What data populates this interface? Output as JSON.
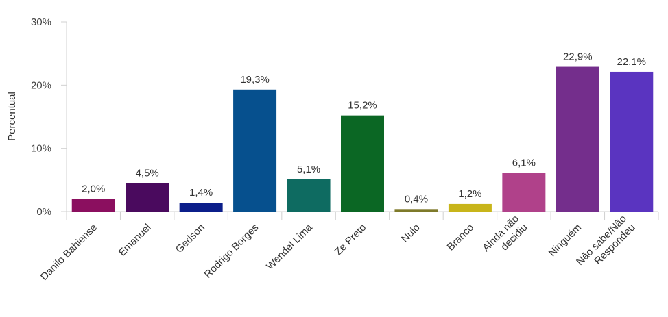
{
  "chart_data": {
    "type": "bar",
    "ylabel": "Percentual",
    "ylim": [
      0,
      30
    ],
    "yticks": [
      0,
      10,
      20,
      30
    ],
    "ytick_labels": [
      "0%",
      "10%",
      "20%",
      "30%"
    ],
    "grid": false,
    "categories": [
      [
        "Danilo Bahiense"
      ],
      [
        "Emanuel"
      ],
      [
        "Gedson"
      ],
      [
        "Rodrigo Borges"
      ],
      [
        "Wendel Lima"
      ],
      [
        "Ze Preto"
      ],
      [
        "Nulo"
      ],
      [
        "Branco"
      ],
      [
        "Ainda não",
        "decidiu"
      ],
      [
        "Ninguém"
      ],
      [
        "Não sabe/Não",
        "Respondeu"
      ]
    ],
    "values": [
      2.0,
      4.5,
      1.4,
      19.3,
      5.1,
      15.2,
      0.4,
      1.2,
      6.1,
      22.9,
      22.1
    ],
    "value_labels": [
      "2,0%",
      "4,5%",
      "1,4%",
      "19,3%",
      "5,1%",
      "15,2%",
      "0,4%",
      "1,2%",
      "6,1%",
      "22,9%",
      "22,1%"
    ],
    "colors": [
      "#8b0f5f",
      "#4a0a5e",
      "#0b1e8a",
      "#06508e",
      "#0e6b61",
      "#0b6724",
      "#7e7a2a",
      "#c8b51a",
      "#b0418a",
      "#742e8c",
      "#5a34c0"
    ]
  }
}
